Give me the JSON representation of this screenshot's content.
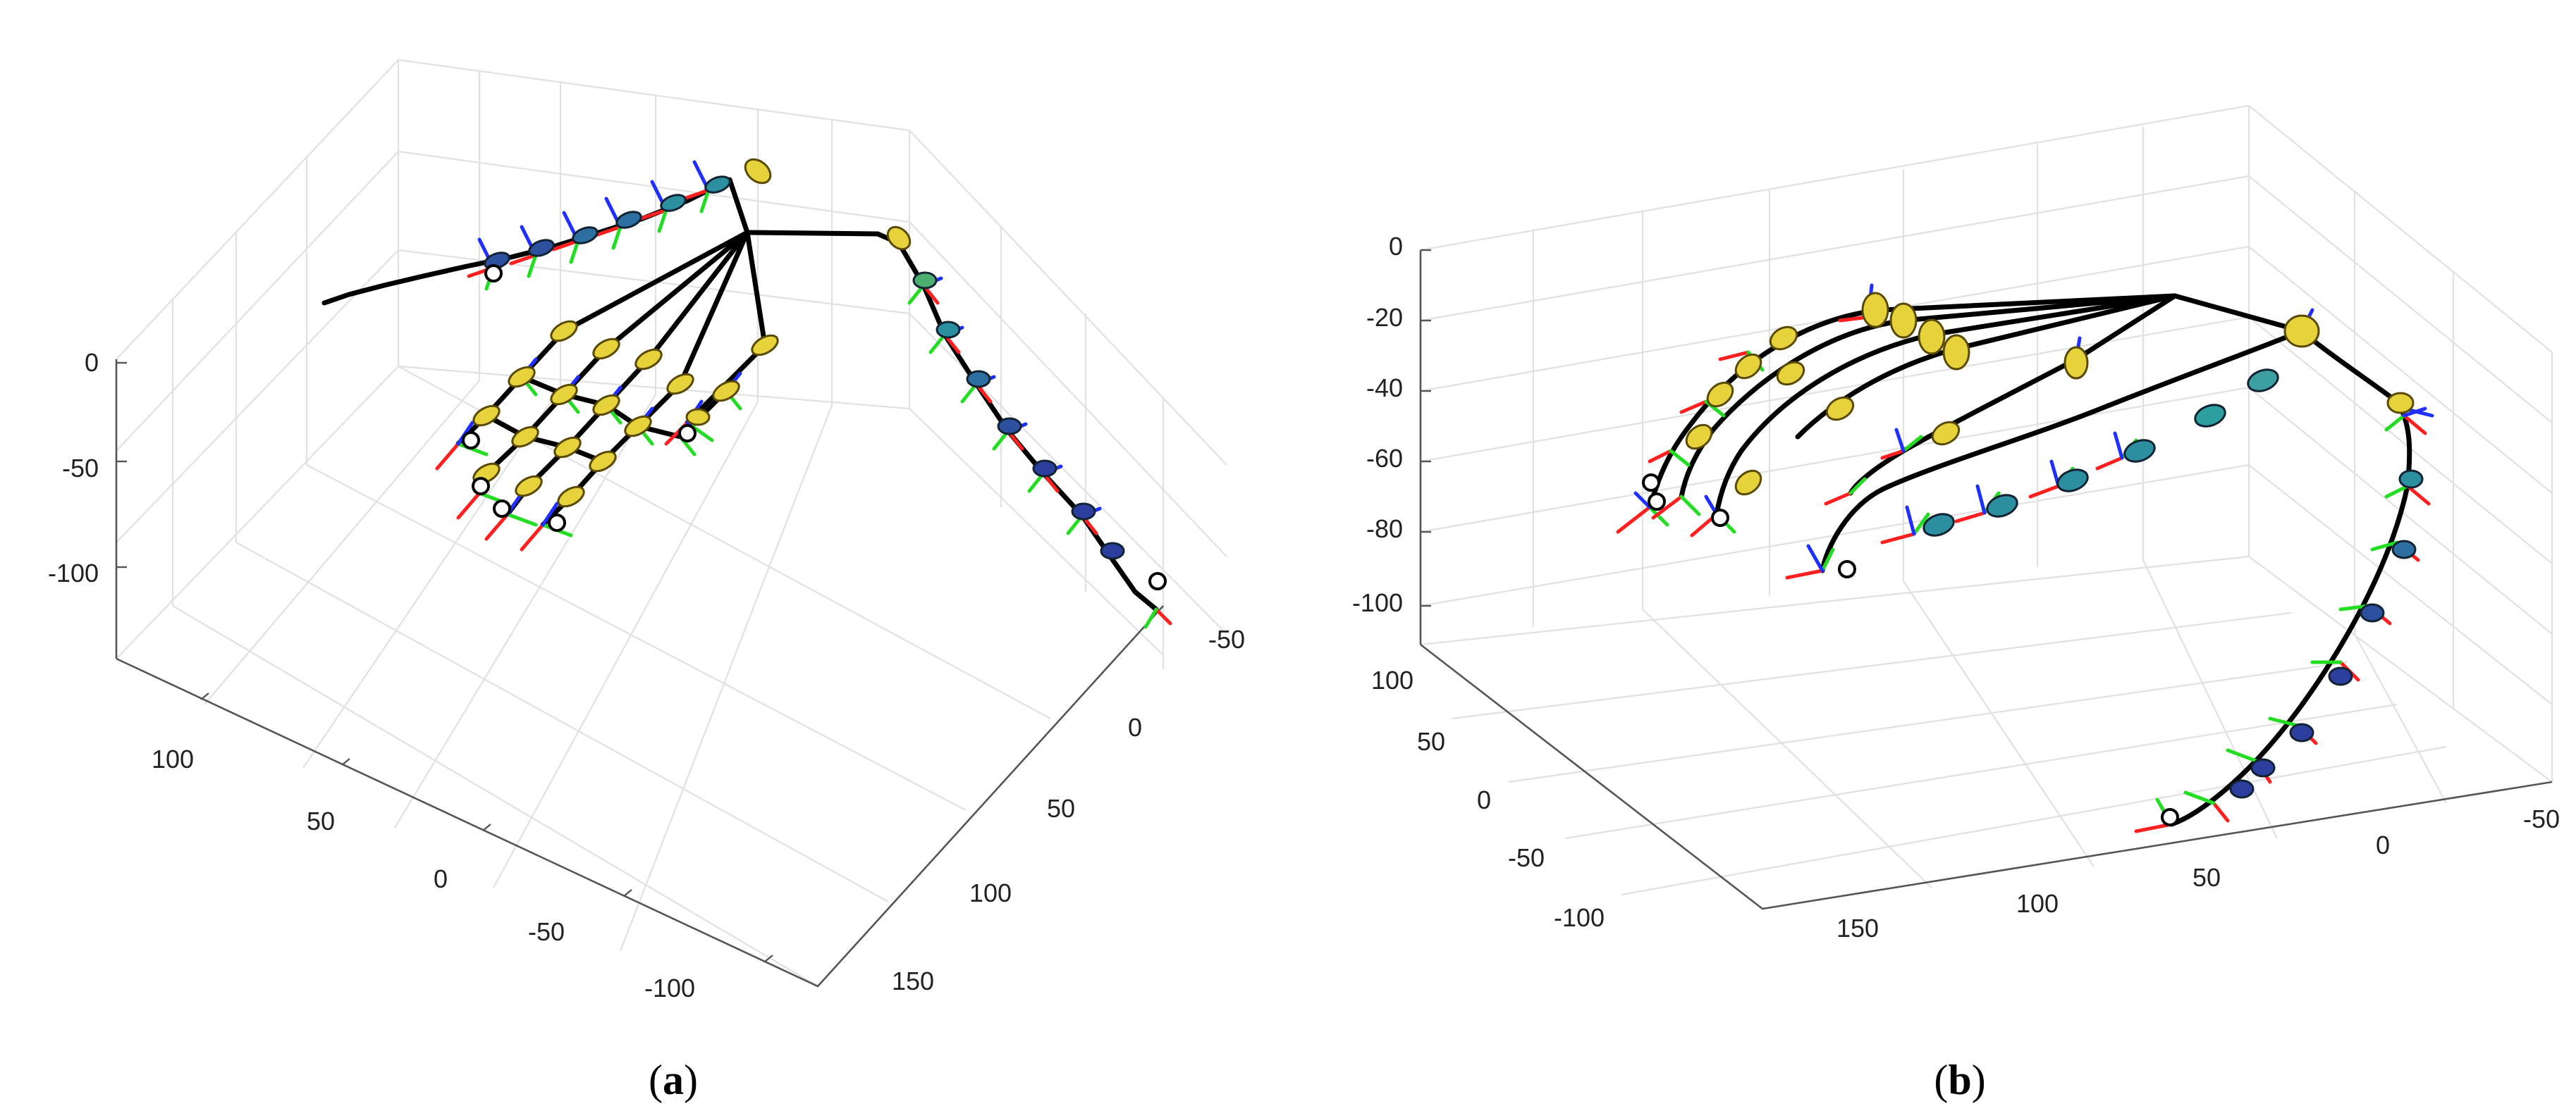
{
  "panels": [
    {
      "id": "a",
      "caption": {
        "open": "(",
        "letter": "a",
        "close": ")"
      },
      "z_ticks": [
        "0",
        "-50",
        "-100"
      ],
      "axis1_ticks": [
        "100",
        "50",
        "0",
        "-50",
        "-100"
      ],
      "axis2_ticks": [
        "-50",
        "0",
        "50",
        "100",
        "150"
      ]
    },
    {
      "id": "b",
      "caption": {
        "open": "(",
        "letter": "b",
        "close": ")"
      },
      "z_ticks": [
        "0",
        "-20",
        "-40",
        "-60",
        "-80",
        "-100"
      ],
      "axis1_ticks": [
        "100",
        "50",
        "0",
        "-50",
        "-100"
      ],
      "axis2_ticks": [
        "150",
        "100",
        "50",
        "0",
        "-50"
      ]
    }
  ],
  "colors": {
    "x_axis_frame": "#ff1f1f",
    "y_axis_frame": "#22dd22",
    "z_axis_frame": "#1f2fff",
    "joint_near_palm": "#e6d23a",
    "joint_distal": "#2c3f9e",
    "links": "#000000",
    "grid": "#e1e1e1"
  }
}
